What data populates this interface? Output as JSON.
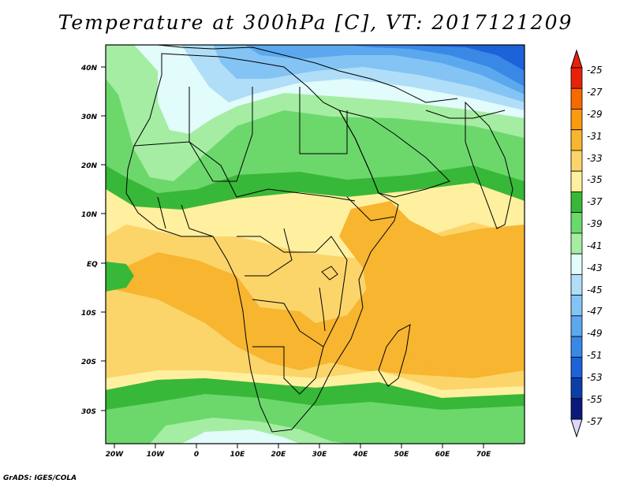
{
  "title": "Temperature at 300hPa [C], VT: 2017121209",
  "credit": "GrADS: IGES/COLA",
  "lat_ticks": [
    "40N",
    "30N",
    "20N",
    "10N",
    "EQ",
    "10S",
    "20S",
    "30S"
  ],
  "lon_ticks": [
    "20W",
    "10W",
    "0",
    "10E",
    "20E",
    "30E",
    "40E",
    "50E",
    "60E",
    "70E"
  ],
  "colorbar": {
    "labels": [
      "-25",
      "-27",
      "-29",
      "-31",
      "-33",
      "-35",
      "-37",
      "-39",
      "-41",
      "-43",
      "-45",
      "-47",
      "-49",
      "-51",
      "-53",
      "-55",
      "-57"
    ],
    "colors": [
      "#e8220a",
      "#f76a00",
      "#fb9a10",
      "#f7b530",
      "#fcd56a",
      "#fff0a0",
      "#38b838",
      "#6cd86c",
      "#a5eda2",
      "#e2fbfb",
      "#b0def8",
      "#84c4f4",
      "#5ca8ee",
      "#3a88e6",
      "#1c62d8",
      "#0c3ea8",
      "#0b1a7a"
    ]
  }
}
